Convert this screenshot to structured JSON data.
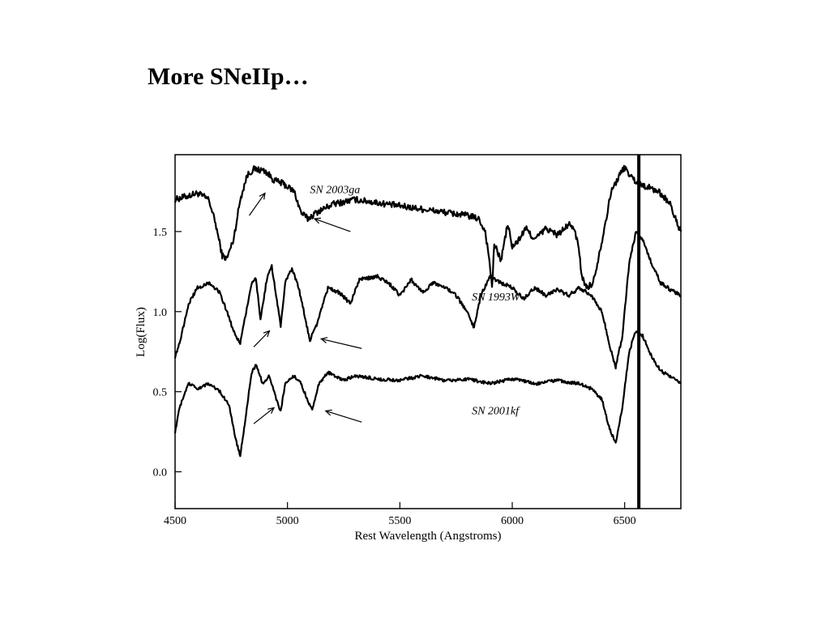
{
  "slide": {
    "title": "More SNeIIp…"
  },
  "chart_data": {
    "type": "line",
    "title": "",
    "xlabel": "Rest Wavelength (Angstroms)",
    "ylabel": "Log(Flux)",
    "xlim": [
      4500,
      6750
    ],
    "ylim": [
      -0.23,
      1.98
    ],
    "x_ticks": [
      4500,
      5000,
      5500,
      6000,
      6500
    ],
    "y_ticks": [
      0.0,
      0.5,
      1.0,
      1.5
    ],
    "x_tick_labels": [
      "4500",
      "5000",
      "5500",
      "6000",
      "6500"
    ],
    "y_tick_labels": [
      "0.0",
      "0.5",
      "1.0",
      "1.5"
    ],
    "grid": false,
    "colors": {
      "line": "#000000",
      "background": "#ffffff"
    },
    "series": [
      {
        "name": "SN 2003ga",
        "label_at": [
          5100,
          1.74
        ],
        "noise": 0.02,
        "points": [
          [
            4500,
            1.7
          ],
          [
            4550,
            1.72
          ],
          [
            4600,
            1.74
          ],
          [
            4650,
            1.7
          ],
          [
            4680,
            1.55
          ],
          [
            4710,
            1.35
          ],
          [
            4730,
            1.33
          ],
          [
            4760,
            1.45
          ],
          [
            4790,
            1.7
          ],
          [
            4820,
            1.85
          ],
          [
            4850,
            1.89
          ],
          [
            4900,
            1.88
          ],
          [
            4940,
            1.82
          ],
          [
            4980,
            1.8
          ],
          [
            5030,
            1.75
          ],
          [
            5060,
            1.62
          ],
          [
            5090,
            1.58
          ],
          [
            5130,
            1.62
          ],
          [
            5200,
            1.67
          ],
          [
            5300,
            1.7
          ],
          [
            5400,
            1.68
          ],
          [
            5500,
            1.66
          ],
          [
            5600,
            1.64
          ],
          [
            5700,
            1.62
          ],
          [
            5800,
            1.6
          ],
          [
            5850,
            1.58
          ],
          [
            5880,
            1.5
          ],
          [
            5900,
            1.3
          ],
          [
            5910,
            1.15
          ],
          [
            5920,
            1.42
          ],
          [
            5950,
            1.32
          ],
          [
            5980,
            1.55
          ],
          [
            6000,
            1.4
          ],
          [
            6030,
            1.45
          ],
          [
            6060,
            1.52
          ],
          [
            6100,
            1.45
          ],
          [
            6150,
            1.52
          ],
          [
            6200,
            1.48
          ],
          [
            6260,
            1.55
          ],
          [
            6290,
            1.45
          ],
          [
            6310,
            1.22
          ],
          [
            6330,
            1.15
          ],
          [
            6360,
            1.18
          ],
          [
            6400,
            1.45
          ],
          [
            6440,
            1.75
          ],
          [
            6480,
            1.86
          ],
          [
            6500,
            1.9
          ],
          [
            6530,
            1.84
          ],
          [
            6560,
            1.8
          ],
          [
            6600,
            1.78
          ],
          [
            6650,
            1.75
          ],
          [
            6700,
            1.68
          ],
          [
            6720,
            1.6
          ],
          [
            6750,
            1.5
          ]
        ]
      },
      {
        "name": "SN 1993W",
        "label_at": [
          5820,
          1.07
        ],
        "noise": 0.012,
        "points": [
          [
            4500,
            0.72
          ],
          [
            4520,
            0.8
          ],
          [
            4560,
            1.05
          ],
          [
            4600,
            1.15
          ],
          [
            4650,
            1.18
          ],
          [
            4700,
            1.12
          ],
          [
            4730,
            1.0
          ],
          [
            4760,
            0.88
          ],
          [
            4790,
            0.8
          ],
          [
            4810,
            0.95
          ],
          [
            4840,
            1.18
          ],
          [
            4860,
            1.2
          ],
          [
            4880,
            0.95
          ],
          [
            4910,
            1.22
          ],
          [
            4930,
            1.28
          ],
          [
            4950,
            1.1
          ],
          [
            4970,
            0.9
          ],
          [
            4990,
            1.18
          ],
          [
            5020,
            1.27
          ],
          [
            5050,
            1.15
          ],
          [
            5080,
            0.95
          ],
          [
            5100,
            0.82
          ],
          [
            5130,
            0.92
          ],
          [
            5180,
            1.15
          ],
          [
            5230,
            1.12
          ],
          [
            5280,
            1.05
          ],
          [
            5320,
            1.2
          ],
          [
            5400,
            1.22
          ],
          [
            5450,
            1.18
          ],
          [
            5500,
            1.1
          ],
          [
            5550,
            1.2
          ],
          [
            5600,
            1.12
          ],
          [
            5650,
            1.18
          ],
          [
            5700,
            1.15
          ],
          [
            5750,
            1.1
          ],
          [
            5800,
            1.0
          ],
          [
            5830,
            0.9
          ],
          [
            5860,
            1.1
          ],
          [
            5900,
            1.22
          ],
          [
            5950,
            1.18
          ],
          [
            6000,
            1.15
          ],
          [
            6050,
            1.08
          ],
          [
            6100,
            1.15
          ],
          [
            6150,
            1.1
          ],
          [
            6200,
            1.14
          ],
          [
            6250,
            1.1
          ],
          [
            6300,
            1.15
          ],
          [
            6350,
            1.1
          ],
          [
            6400,
            1.0
          ],
          [
            6430,
            0.8
          ],
          [
            6460,
            0.65
          ],
          [
            6490,
            0.85
          ],
          [
            6520,
            1.3
          ],
          [
            6550,
            1.5
          ],
          [
            6580,
            1.45
          ],
          [
            6620,
            1.3
          ],
          [
            6660,
            1.18
          ],
          [
            6700,
            1.14
          ],
          [
            6750,
            1.1
          ]
        ]
      },
      {
        "name": "SN 2001kf",
        "label_at": [
          5820,
          0.36
        ],
        "noise": 0.01,
        "points": [
          [
            4500,
            0.25
          ],
          [
            4520,
            0.4
          ],
          [
            4560,
            0.55
          ],
          [
            4600,
            0.52
          ],
          [
            4650,
            0.55
          ],
          [
            4700,
            0.5
          ],
          [
            4740,
            0.42
          ],
          [
            4770,
            0.2
          ],
          [
            4790,
            0.1
          ],
          [
            4810,
            0.3
          ],
          [
            4840,
            0.62
          ],
          [
            4860,
            0.67
          ],
          [
            4890,
            0.55
          ],
          [
            4920,
            0.6
          ],
          [
            4950,
            0.45
          ],
          [
            4970,
            0.38
          ],
          [
            4990,
            0.55
          ],
          [
            5030,
            0.6
          ],
          [
            5060,
            0.55
          ],
          [
            5090,
            0.45
          ],
          [
            5110,
            0.38
          ],
          [
            5140,
            0.55
          ],
          [
            5180,
            0.62
          ],
          [
            5250,
            0.57
          ],
          [
            5300,
            0.6
          ],
          [
            5400,
            0.58
          ],
          [
            5500,
            0.57
          ],
          [
            5600,
            0.6
          ],
          [
            5700,
            0.57
          ],
          [
            5800,
            0.58
          ],
          [
            5900,
            0.55
          ],
          [
            6000,
            0.58
          ],
          [
            6100,
            0.55
          ],
          [
            6200,
            0.57
          ],
          [
            6300,
            0.55
          ],
          [
            6350,
            0.52
          ],
          [
            6400,
            0.45
          ],
          [
            6430,
            0.28
          ],
          [
            6460,
            0.18
          ],
          [
            6490,
            0.4
          ],
          [
            6520,
            0.75
          ],
          [
            6550,
            0.88
          ],
          [
            6580,
            0.85
          ],
          [
            6620,
            0.72
          ],
          [
            6660,
            0.63
          ],
          [
            6700,
            0.6
          ],
          [
            6750,
            0.55
          ]
        ]
      }
    ],
    "annotations": {
      "vertical_line_x": 6563,
      "arrows": [
        {
          "from": [
            4830,
            1.6
          ],
          "to": [
            4900,
            1.74
          ]
        },
        {
          "from": [
            5280,
            1.5
          ],
          "to": [
            5120,
            1.58
          ]
        },
        {
          "from": [
            4850,
            0.78
          ],
          "to": [
            4920,
            0.88
          ]
        },
        {
          "from": [
            5330,
            0.77
          ],
          "to": [
            5150,
            0.83
          ]
        },
        {
          "from": [
            4850,
            0.3
          ],
          "to": [
            4940,
            0.4
          ]
        },
        {
          "from": [
            5330,
            0.31
          ],
          "to": [
            5170,
            0.38
          ]
        }
      ]
    }
  }
}
